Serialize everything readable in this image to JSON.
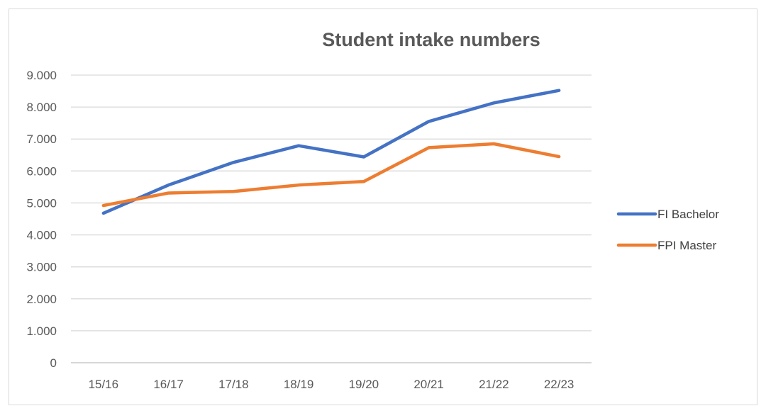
{
  "chart_data": {
    "type": "line",
    "title": "Student intake numbers",
    "xlabel": "",
    "ylabel": "",
    "categories": [
      "15/16",
      "16/17",
      "17/18",
      "18/19",
      "19/20",
      "20/21",
      "21/22",
      "22/23"
    ],
    "y_ticks": [
      "0",
      "1.000",
      "2.000",
      "3.000",
      "4.000",
      "5.000",
      "6.000",
      "7.000",
      "8.000",
      "9.000"
    ],
    "ylim": [
      0,
      9000
    ],
    "grid": true,
    "legend_position": "right",
    "series": [
      {
        "name": "FI Bachelor",
        "color": "#4472c4",
        "values": [
          4680,
          5560,
          6270,
          6790,
          6440,
          7550,
          8130,
          8520
        ]
      },
      {
        "name": "FPI Master",
        "color": "#ed7d31",
        "values": [
          4920,
          5310,
          5360,
          5560,
          5670,
          6730,
          6850,
          6450
        ]
      }
    ]
  }
}
